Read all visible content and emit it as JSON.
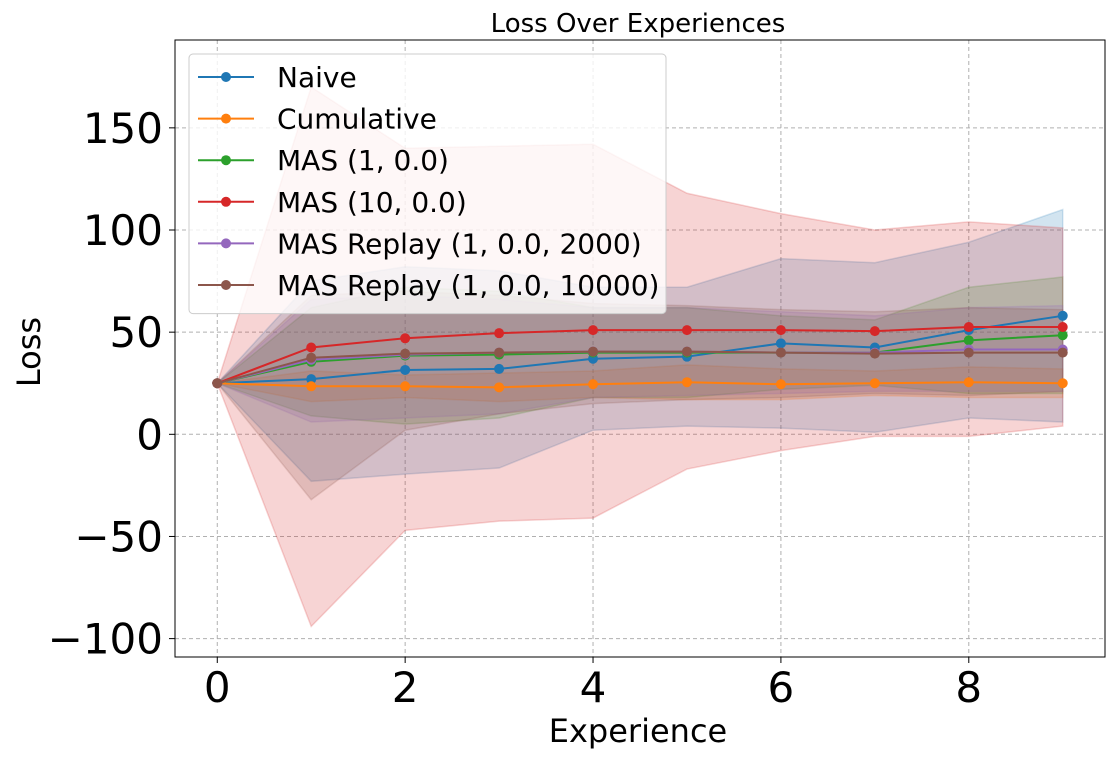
{
  "chart_data": {
    "type": "line",
    "title": "Loss Over Experiences",
    "xlabel": "Experience",
    "ylabel": "Loss",
    "xlim": [
      -0.45,
      9.45
    ],
    "ylim": [
      -109,
      193
    ],
    "x_ticks": [
      0,
      2,
      4,
      6,
      8
    ],
    "x_tick_labels": [
      "0",
      "2",
      "4",
      "6",
      "8"
    ],
    "y_ticks": [
      -100,
      -50,
      0,
      50,
      100,
      150
    ],
    "y_tick_labels": [
      "−100",
      "−50",
      "0",
      "50",
      "100",
      "150"
    ],
    "grid": true,
    "legend_position": "upper-left",
    "x": [
      0,
      1,
      2,
      3,
      4,
      5,
      6,
      7,
      8,
      9
    ],
    "series": [
      {
        "name": "Naive",
        "color": "#1f77b4",
        "values": [
          25,
          27,
          31.5,
          32,
          37,
          38,
          44.5,
          42.5,
          51,
          58
        ],
        "upper": [
          25,
          75,
          82,
          80,
          72,
          72,
          86,
          84,
          94,
          110
        ],
        "lower": [
          25,
          -23,
          -19.5,
          -16.5,
          2,
          4,
          3,
          1,
          8,
          6
        ]
      },
      {
        "name": "Cumulative",
        "color": "#ff7f0e",
        "values": [
          25,
          23.5,
          23.5,
          23,
          24.5,
          25.5,
          24.5,
          25,
          25.5,
          25
        ],
        "upper": [
          25,
          31,
          29,
          30,
          31,
          34,
          32,
          31,
          33,
          32
        ],
        "lower": [
          25,
          16,
          18,
          16,
          18,
          17,
          17,
          19,
          18,
          18
        ]
      },
      {
        "name": "MAS (1, 0.0)",
        "color": "#2ca02c",
        "values": [
          25,
          35.5,
          38.5,
          39,
          40,
          40,
          40,
          40,
          46,
          48.5
        ],
        "upper": [
          25,
          62,
          72,
          70,
          62,
          62,
          58,
          56,
          72,
          77
        ],
        "lower": [
          25,
          9,
          5,
          8,
          18,
          18,
          22,
          24,
          20,
          20
        ]
      },
      {
        "name": "MAS (10, 0.0)",
        "color": "#d62728",
        "values": [
          25,
          42.5,
          47,
          49.5,
          51,
          51,
          51,
          50.5,
          52.5,
          52.5
        ],
        "upper": [
          25,
          170,
          140,
          141,
          142,
          118,
          108,
          100,
          104,
          101
        ],
        "lower": [
          25,
          -94,
          -47,
          -42.5,
          -41,
          -17,
          -8,
          -1,
          -1,
          4
        ]
      },
      {
        "name": "MAS Replay (1, 0.0, 2000)",
        "color": "#9467bd",
        "values": [
          25,
          36.5,
          39,
          40,
          40.5,
          40.5,
          40,
          40,
          41.5,
          41.5
        ],
        "upper": [
          25,
          66,
          68,
          66,
          62,
          62,
          60,
          58,
          62,
          63
        ],
        "lower": [
          25,
          6,
          8,
          10,
          18,
          19,
          20,
          21,
          21,
          21
        ]
      },
      {
        "name": "MAS Replay (1, 0.0, 10000)",
        "color": "#8c564b",
        "values": [
          25,
          37.5,
          39.5,
          40,
          40.5,
          40.5,
          40,
          39.5,
          40,
          40
        ],
        "upper": [
          25,
          68,
          70,
          68,
          64,
          63,
          61,
          60,
          62,
          61
        ],
        "lower": [
          25,
          -32,
          2,
          10,
          15,
          17,
          18,
          20,
          19,
          21
        ]
      }
    ]
  }
}
